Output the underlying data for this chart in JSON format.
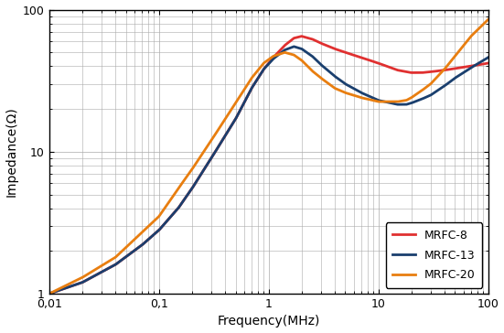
{
  "xlabel": "Frequency(MHz)",
  "ylabel": "Impedance(Ω)",
  "xlim": [
    0.01,
    100
  ],
  "ylim": [
    1,
    100
  ],
  "legend_labels": [
    "MRFC-8",
    "MRFC-13",
    "MRFC-20"
  ],
  "colors": {
    "MRFC-8": "#e03030",
    "MRFC-13": "#1a3f6e",
    "MRFC-20": "#e87e10"
  },
  "background_color": "#ffffff",
  "grid_color": "#aaaaaa",
  "linewidth": 2.0,
  "mrfc8": {
    "freq": [
      0.01,
      0.02,
      0.04,
      0.07,
      0.1,
      0.15,
      0.2,
      0.3,
      0.5,
      0.7,
      0.9,
      1.1,
      1.4,
      1.7,
      2.0,
      2.5,
      3.0,
      4.0,
      5.0,
      7.0,
      10.0,
      13.0,
      15.0,
      18.0,
      20.0,
      25.0,
      30.0,
      40.0,
      50.0,
      70.0,
      100.0
    ],
    "imp": [
      1.0,
      1.2,
      1.6,
      2.2,
      2.8,
      4.0,
      5.5,
      9.0,
      17.0,
      28.0,
      38.0,
      46.0,
      56.0,
      63.0,
      65.0,
      62.0,
      58.0,
      53.0,
      50.0,
      46.0,
      42.0,
      39.0,
      37.5,
      36.5,
      36.0,
      36.0,
      36.5,
      37.5,
      38.5,
      40.0,
      42.0
    ]
  },
  "mrfc13": {
    "freq": [
      0.01,
      0.02,
      0.04,
      0.07,
      0.1,
      0.15,
      0.2,
      0.3,
      0.5,
      0.7,
      0.9,
      1.1,
      1.4,
      1.7,
      2.0,
      2.5,
      3.0,
      4.0,
      5.0,
      7.0,
      10.0,
      13.0,
      15.0,
      18.0,
      20.0,
      25.0,
      30.0,
      40.0,
      50.0,
      70.0,
      100.0
    ],
    "imp": [
      1.0,
      1.2,
      1.6,
      2.2,
      2.8,
      4.0,
      5.5,
      9.0,
      17.0,
      28.0,
      38.0,
      45.0,
      52.0,
      55.0,
      53.0,
      47.0,
      41.0,
      34.0,
      30.0,
      26.0,
      23.0,
      22.0,
      21.5,
      21.5,
      22.0,
      23.5,
      25.0,
      29.0,
      33.0,
      39.0,
      46.0
    ]
  },
  "mrfc20": {
    "freq": [
      0.01,
      0.02,
      0.04,
      0.07,
      0.1,
      0.15,
      0.2,
      0.3,
      0.5,
      0.7,
      0.9,
      1.1,
      1.4,
      1.7,
      2.0,
      2.5,
      3.0,
      4.0,
      5.0,
      7.0,
      10.0,
      13.0,
      15.0,
      18.0,
      20.0,
      25.0,
      30.0,
      40.0,
      50.0,
      70.0,
      100.0
    ],
    "imp": [
      1.0,
      1.3,
      1.8,
      2.7,
      3.5,
      5.5,
      7.5,
      12.0,
      22.0,
      33.0,
      42.0,
      47.0,
      50.0,
      48.0,
      44.0,
      37.0,
      33.0,
      28.0,
      26.0,
      24.0,
      22.5,
      22.5,
      22.5,
      23.0,
      24.0,
      27.0,
      30.0,
      38.0,
      47.0,
      65.0,
      85.0
    ]
  }
}
